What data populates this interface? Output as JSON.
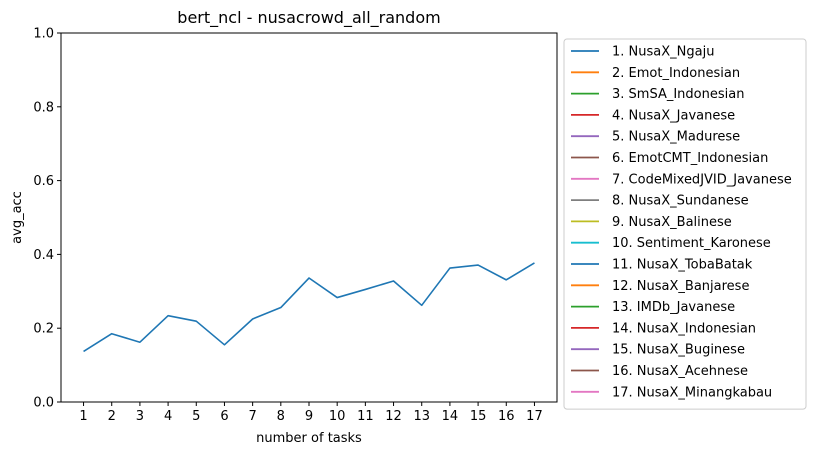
{
  "chart_data": {
    "type": "line",
    "title": "bert_ncl - nusacrowd_all_random",
    "xlabel": "number of tasks",
    "ylabel": "avg_acc",
    "ylim": [
      0,
      1
    ],
    "xlim": [
      0.2,
      17.8
    ],
    "x": [
      1,
      2,
      3,
      4,
      5,
      6,
      7,
      8,
      9,
      10,
      11,
      12,
      13,
      14,
      15,
      16,
      17
    ],
    "xticks": [
      "1",
      "2",
      "3",
      "4",
      "5",
      "6",
      "7",
      "8",
      "9",
      "10",
      "11",
      "12",
      "13",
      "14",
      "15",
      "16",
      "17"
    ],
    "yticks": [
      0.0,
      0.2,
      0.4,
      0.6,
      0.8,
      1.0
    ],
    "ytick_labels": [
      "0.0",
      "0.2",
      "0.4",
      "0.6",
      "0.8",
      "1.0"
    ],
    "grid": false,
    "legend_position": "outside-right",
    "series": [
      {
        "name": "1. NusaX_Ngaju",
        "color": "#1f77b4",
        "values": [
          0.137,
          0.185,
          0.162,
          0.234,
          0.219,
          0.155,
          0.225,
          0.256,
          0.336,
          0.283,
          0.305,
          0.328,
          0.262,
          0.363,
          0.371,
          0.331,
          0.377
        ]
      }
    ],
    "legend": [
      {
        "label": "1. NusaX_Ngaju",
        "color": "#1f77b4"
      },
      {
        "label": "2. Emot_Indonesian",
        "color": "#ff7f0e"
      },
      {
        "label": "3. SmSA_Indonesian",
        "color": "#2ca02c"
      },
      {
        "label": "4. NusaX_Javanese",
        "color": "#d62728"
      },
      {
        "label": "5. NusaX_Madurese",
        "color": "#9467bd"
      },
      {
        "label": "6. EmotCMT_Indonesian",
        "color": "#8c564b"
      },
      {
        "label": "7. CodeMixedJVID_Javanese",
        "color": "#e377c2"
      },
      {
        "label": "8. NusaX_Sundanese",
        "color": "#7f7f7f"
      },
      {
        "label": "9. NusaX_Balinese",
        "color": "#bcbd22"
      },
      {
        "label": "10. Sentiment_Karonese",
        "color": "#17becf"
      },
      {
        "label": "11. NusaX_TobaBatak",
        "color": "#1f77b4"
      },
      {
        "label": "12. NusaX_Banjarese",
        "color": "#ff7f0e"
      },
      {
        "label": "13. IMDb_Javanese",
        "color": "#2ca02c"
      },
      {
        "label": "14. NusaX_Indonesian",
        "color": "#d62728"
      },
      {
        "label": "15. NusaX_Buginese",
        "color": "#9467bd"
      },
      {
        "label": "16. NusaX_Acehnese",
        "color": "#8c564b"
      },
      {
        "label": "17. NusaX_Minangkabau",
        "color": "#e377c2"
      }
    ]
  }
}
